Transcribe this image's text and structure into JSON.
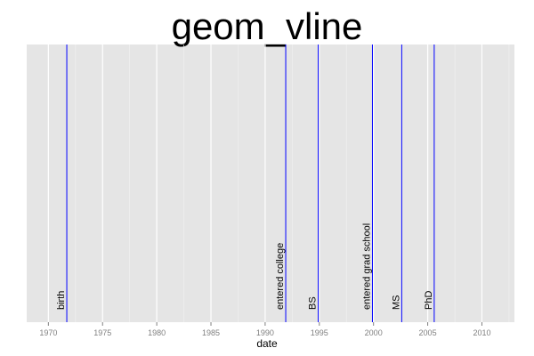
{
  "chart_data": {
    "type": "vline",
    "title": "geom_vline",
    "x_label": "date",
    "x": [
      1971.7,
      1991.9,
      1994.9,
      1999.9,
      2002.6,
      2005.6
    ],
    "labels": [
      "birth",
      "entered college",
      "BS",
      "entered grad school",
      "MS",
      "PhD"
    ],
    "color": "#0000ff",
    "xlim": [
      1968,
      2013
    ],
    "xticks": [
      1970,
      1975,
      1980,
      1985,
      1990,
      1995,
      2000,
      2005,
      2010
    ],
    "grid": true
  }
}
